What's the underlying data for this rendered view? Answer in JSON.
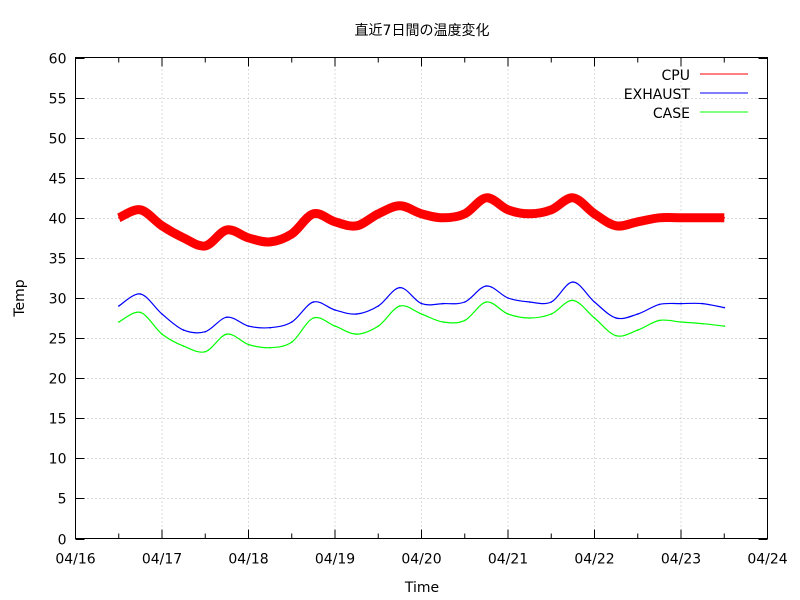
{
  "chart_data": {
    "type": "line",
    "title": "直近7日間の温度変化",
    "xlabel": "Time",
    "ylabel": "Temp",
    "xlim": [
      "04/16",
      "04/24"
    ],
    "ylim": [
      0,
      60
    ],
    "x_ticks": [
      "04/16",
      "04/17",
      "04/18",
      "04/19",
      "04/20",
      "04/21",
      "04/22",
      "04/23",
      "04/24"
    ],
    "y_ticks": [
      0,
      5,
      10,
      15,
      20,
      25,
      30,
      35,
      40,
      45,
      50,
      55,
      60
    ],
    "grid": true,
    "legend_position": "top-right",
    "x": [
      "04/16 12:00",
      "04/16 18:00",
      "04/17 00:00",
      "04/17 06:00",
      "04/17 12:00",
      "04/17 18:00",
      "04/18 00:00",
      "04/18 06:00",
      "04/18 12:00",
      "04/18 18:00",
      "04/19 00:00",
      "04/19 06:00",
      "04/19 12:00",
      "04/19 18:00",
      "04/20 00:00",
      "04/20 06:00",
      "04/20 12:00",
      "04/20 18:00",
      "04/21 00:00",
      "04/21 06:00",
      "04/21 12:00",
      "04/21 18:00",
      "04/22 00:00",
      "04/22 06:00",
      "04/22 12:00",
      "04/22 18:00",
      "04/23 00:00",
      "04/23 06:00",
      "04/23 12:00"
    ],
    "series": [
      {
        "name": "CPU",
        "color": "#ff0000",
        "values": [
          40.0,
          41.0,
          39.0,
          37.5,
          36.5,
          38.5,
          37.5,
          37.0,
          38.0,
          40.5,
          39.5,
          39.0,
          40.5,
          41.5,
          40.5,
          40.0,
          40.5,
          42.5,
          41.0,
          40.5,
          41.0,
          42.5,
          40.5,
          39.0,
          39.5,
          40.0,
          40.0,
          40.0,
          40.0
        ]
      },
      {
        "name": "EXHAUST",
        "color": "#0000ff",
        "values": [
          29.0,
          30.5,
          28.0,
          26.0,
          25.8,
          27.6,
          26.5,
          26.3,
          27.0,
          29.5,
          28.5,
          28.0,
          29.0,
          31.3,
          29.3,
          29.3,
          29.5,
          31.5,
          30.0,
          29.5,
          29.5,
          32.0,
          29.5,
          27.5,
          28.0,
          29.2,
          29.3,
          29.3,
          28.8
        ]
      },
      {
        "name": "CASE",
        "color": "#00ff00",
        "values": [
          27.0,
          28.2,
          25.5,
          24.0,
          23.3,
          25.5,
          24.2,
          23.8,
          24.5,
          27.5,
          26.5,
          25.5,
          26.5,
          29.0,
          28.0,
          27.0,
          27.2,
          29.5,
          28.0,
          27.5,
          28.0,
          29.7,
          27.5,
          25.3,
          26.0,
          27.2,
          27.0,
          26.8,
          26.5
        ]
      }
    ]
  }
}
